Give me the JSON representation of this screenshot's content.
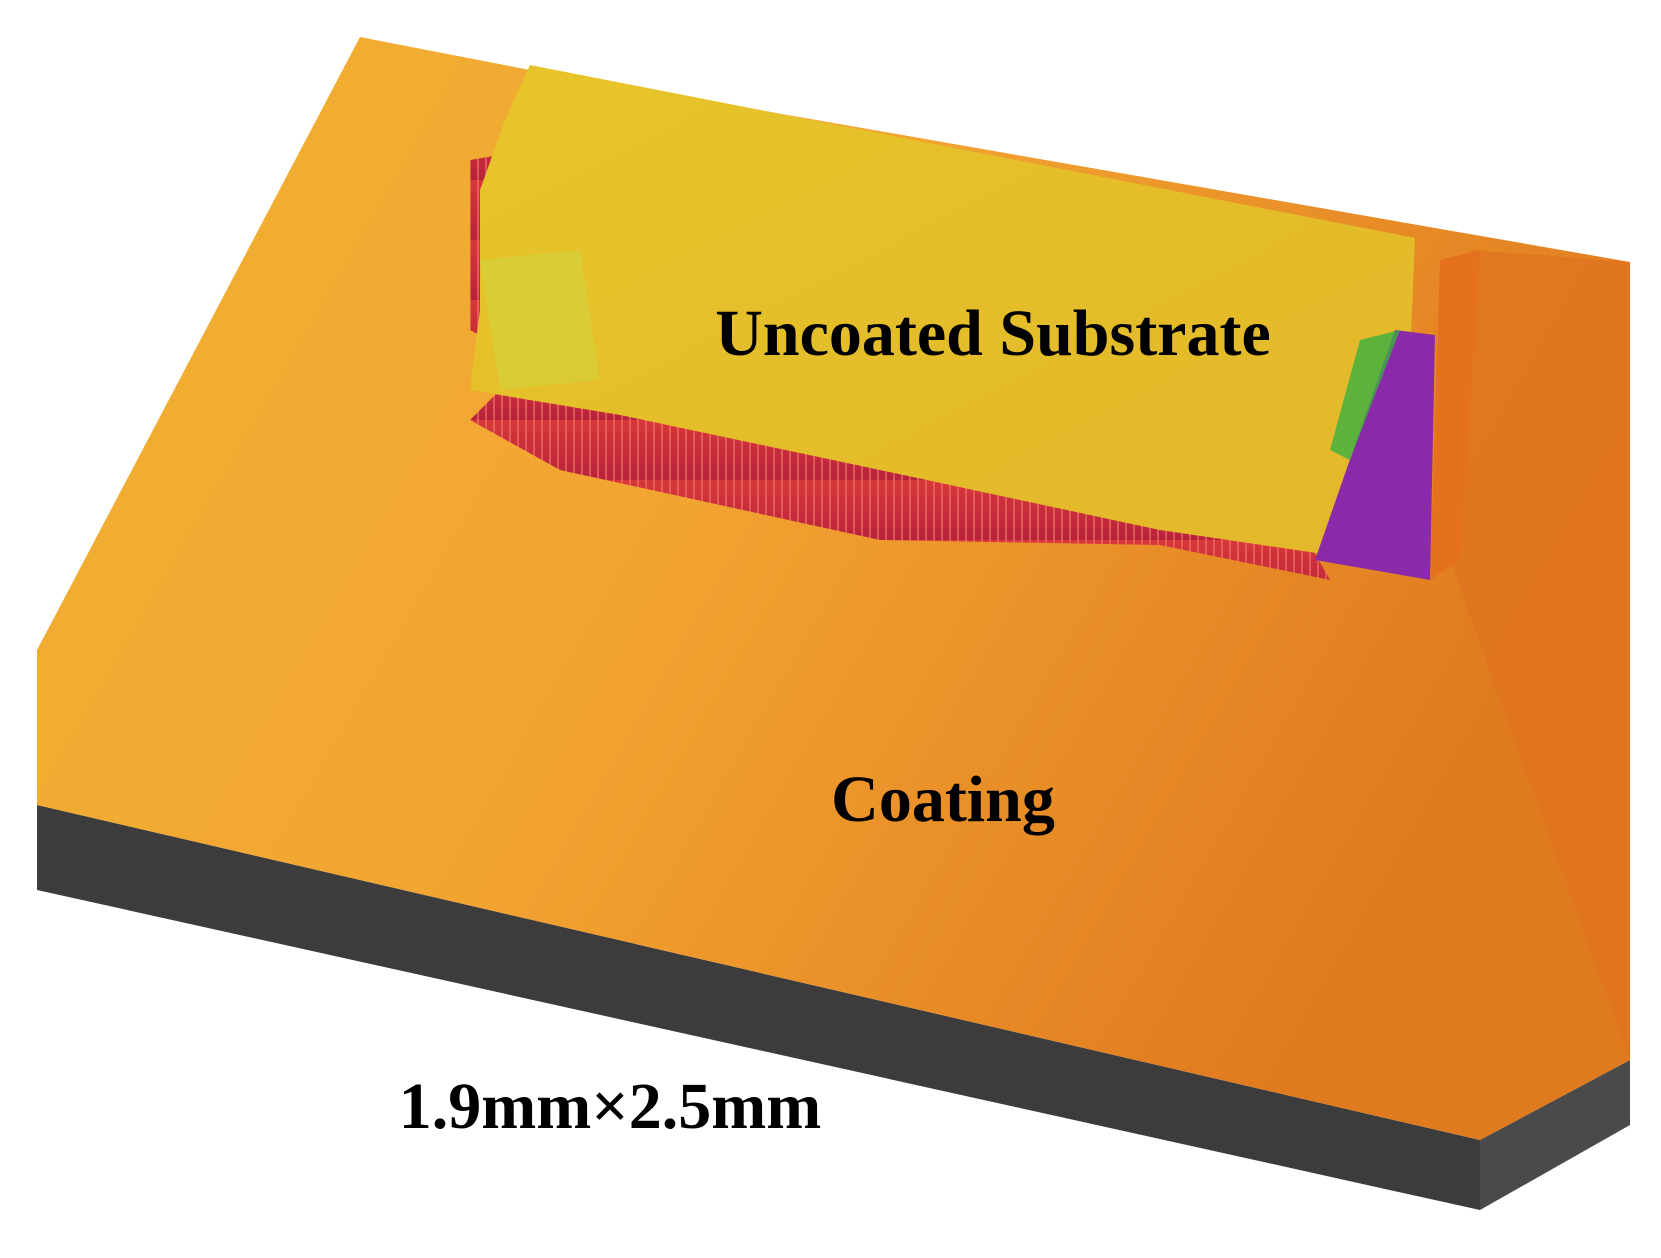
{
  "labels": {
    "substrate": "Uncoated Substrate",
    "coating": "Coating",
    "dimensions": "1.9mm×2.5mm"
  }
}
